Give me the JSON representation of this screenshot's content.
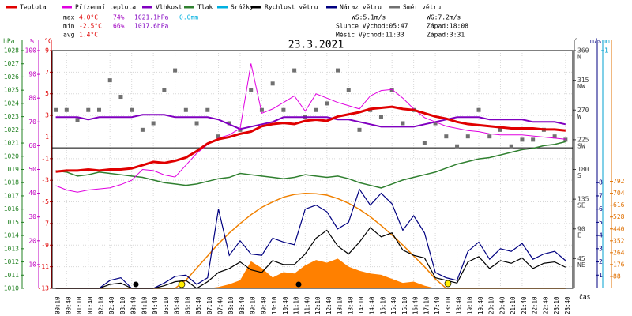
{
  "chart_data": {
    "type": "line",
    "title": "23.3.2021",
    "xlabel": "čas",
    "x": [
      "00:10",
      "00:40",
      "01:10",
      "01:40",
      "02:10",
      "02:40",
      "03:10",
      "03:40",
      "04:10",
      "04:40",
      "05:10",
      "05:40",
      "06:10",
      "06:40",
      "07:10",
      "07:40",
      "08:10",
      "08:40",
      "09:10",
      "09:40",
      "10:10",
      "10:40",
      "11:10",
      "11:40",
      "12:10",
      "12:40",
      "13:10",
      "13:40",
      "14:10",
      "14:40",
      "15:10",
      "15:40",
      "16:10",
      "16:40",
      "17:10",
      "17:40",
      "18:10",
      "18:40",
      "19:10",
      "19:40",
      "20:10",
      "20:40",
      "21:10",
      "21:40",
      "22:10",
      "22:40",
      "23:10",
      "23:40"
    ],
    "axes": {
      "hpa": {
        "label": "hPa",
        "color": "#208020",
        "ylim": [
          1010,
          1028
        ],
        "yticks": [
          1010,
          1011,
          1012,
          1013,
          1014,
          1015,
          1016,
          1017,
          1018,
          1019,
          1020,
          1021,
          1022,
          1023,
          1024,
          1025,
          1026,
          1027,
          1028
        ]
      },
      "pct": {
        "label": "%",
        "color": "#c000c0",
        "ylim": [
          0,
          100
        ],
        "yticks": [
          10,
          20,
          30,
          40,
          50,
          60,
          70,
          80,
          90,
          100
        ]
      },
      "temp": {
        "label": "°C",
        "color": "#e00000",
        "ylim": [
          -13,
          9
        ],
        "yticks": [
          -13,
          -11,
          -9,
          -7,
          -5,
          -3,
          -1,
          1,
          3,
          5,
          7,
          9
        ]
      },
      "dir": {
        "label": "°",
        "color": "#404040",
        "ylim": [
          0,
          360
        ],
        "yticks": [
          45,
          90,
          135,
          180,
          225,
          270,
          315,
          360
        ],
        "compass": [
          "NE",
          "E",
          "SE",
          "S",
          "SW",
          "W",
          "NW",
          "N"
        ]
      },
      "wind": {
        "label": "m/s",
        "color": "#000080",
        "ylim": [
          0,
          18
        ],
        "yticks": [
          1,
          2,
          3,
          4,
          5,
          6,
          7,
          8
        ]
      },
      "rain": {
        "label": "mm",
        "color": "#00a0d0",
        "ylim": [
          0,
          1
        ],
        "yticks": [
          1
        ]
      },
      "rad": {
        "color": "#e07000",
        "ylim": [
          0,
          1760
        ],
        "yticks": [
          88,
          176,
          264,
          352,
          440,
          528,
          616,
          704,
          792
        ]
      }
    },
    "series": [
      {
        "name": "Teplota",
        "color": "#e00000",
        "axis": "temp",
        "width": 3,
        "values": [
          -2.2,
          -2.1,
          -2.1,
          -2.0,
          -2.1,
          -2.0,
          -2.0,
          -1.9,
          -1.6,
          -1.3,
          -1.4,
          -1.2,
          -0.9,
          -0.3,
          0.4,
          0.8,
          1.0,
          1.3,
          1.5,
          2.0,
          2.2,
          2.3,
          2.2,
          2.5,
          2.6,
          2.5,
          2.9,
          3.1,
          3.3,
          3.6,
          3.7,
          3.8,
          3.6,
          3.5,
          3.2,
          2.9,
          2.7,
          2.4,
          2.2,
          2.1,
          2.0,
          1.9,
          1.8,
          1.8,
          1.8,
          1.7,
          1.7,
          1.6
        ]
      },
      {
        "name": "Přízemní teplota",
        "color": "#e000e0",
        "axis": "temp",
        "width": 1,
        "values": [
          -3.5,
          -3.9,
          -4.1,
          -3.9,
          -3.8,
          -3.7,
          -3.4,
          -3.0,
          -2.0,
          -2.1,
          -2.5,
          -2.7,
          -1.6,
          -0.5,
          0.3,
          0.9,
          1.2,
          1.8,
          7.8,
          3.2,
          3.6,
          4.2,
          4.8,
          3.4,
          5.0,
          4.6,
          4.2,
          3.9,
          3.6,
          4.8,
          5.3,
          5.4,
          4.6,
          3.6,
          2.8,
          2.4,
          2.0,
          1.8,
          1.6,
          1.5,
          1.3,
          1.2,
          1.2,
          1.2,
          1.1,
          1.0,
          0.9,
          0.8
        ]
      },
      {
        "name": "Vlhkost",
        "color": "#8000c0",
        "axis": "pct",
        "width": 2,
        "values": [
          72,
          72,
          72,
          71,
          72,
          72,
          72,
          72,
          73,
          73,
          73,
          72,
          72,
          72,
          72,
          71,
          69,
          67,
          68,
          69,
          70,
          72,
          72,
          72,
          72,
          72,
          71,
          71,
          70,
          69,
          68,
          68,
          68,
          68,
          69,
          70,
          71,
          72,
          72,
          72,
          71,
          71,
          71,
          71,
          70,
          70,
          70,
          69
        ]
      },
      {
        "name": "Tlak",
        "color": "#308030",
        "axis": "hpa",
        "width": 1.5,
        "values": [
          1018.9,
          1018.8,
          1018.5,
          1018.6,
          1018.8,
          1018.7,
          1018.6,
          1018.5,
          1018.4,
          1018.2,
          1018.0,
          1017.9,
          1017.8,
          1017.9,
          1018.1,
          1018.3,
          1018.4,
          1018.7,
          1018.6,
          1018.5,
          1018.4,
          1018.3,
          1018.4,
          1018.6,
          1018.5,
          1018.4,
          1018.5,
          1018.3,
          1018.0,
          1017.8,
          1017.6,
          1017.9,
          1018.2,
          1018.4,
          1018.6,
          1018.8,
          1019.1,
          1019.4,
          1019.6,
          1019.8,
          1019.9,
          1020.1,
          1020.3,
          1020.5,
          1020.6,
          1020.8,
          1020.9,
          1021.1
        ]
      },
      {
        "name": "Srážky",
        "color": "#00b0e0",
        "axis": "rain",
        "width": 1,
        "values": [
          0,
          0,
          0,
          0,
          0,
          0,
          0,
          0,
          0,
          0,
          0,
          0,
          0,
          0,
          0,
          0,
          0,
          0,
          0,
          0,
          0,
          0,
          0,
          0,
          0,
          0,
          0,
          0,
          0,
          0,
          0,
          0,
          0,
          0,
          0,
          0,
          0,
          0,
          0,
          0,
          0,
          0,
          0,
          0,
          0,
          0,
          0,
          0
        ]
      },
      {
        "name": "Rychlost větru",
        "color": "#000000",
        "axis": "wind",
        "width": 1.2,
        "values": [
          0,
          0,
          0,
          0,
          0,
          0.3,
          0.4,
          0,
          0,
          0,
          0.2,
          0.5,
          0.6,
          0,
          0.5,
          1.2,
          1.5,
          2.0,
          1.4,
          1.2,
          2.1,
          1.8,
          1.8,
          2.6,
          3.8,
          4.4,
          3.2,
          2.6,
          3.5,
          4.6,
          3.9,
          4.2,
          2.9,
          2.5,
          2.3,
          0.8,
          0.6,
          0.4,
          2.0,
          2.4,
          1.5,
          2.1,
          1.9,
          2.3,
          1.5,
          1.9,
          2.0,
          1.6
        ]
      },
      {
        "name": "Náraz větru",
        "color": "#000080",
        "axis": "wind",
        "width": 1.2,
        "values": [
          0,
          0,
          0,
          0,
          0,
          0.6,
          0.8,
          0,
          0,
          0,
          0.4,
          0.9,
          1.0,
          0.3,
          0.8,
          6.0,
          2.5,
          3.6,
          2.6,
          2.5,
          3.8,
          3.5,
          3.3,
          6.0,
          6.3,
          5.8,
          4.5,
          5.0,
          7.5,
          6.3,
          7.2,
          6.4,
          4.4,
          5.5,
          4.2,
          1.2,
          0.8,
          0.6,
          2.8,
          3.5,
          2.2,
          3.0,
          2.8,
          3.4,
          2.2,
          2.6,
          2.8,
          2.1
        ]
      },
      {
        "name": "Směr větru",
        "color": "#707070",
        "axis": "dir",
        "style": "scatter",
        "values": [
          270,
          270,
          255,
          270,
          270,
          315,
          290,
          270,
          240,
          250,
          300,
          330,
          270,
          250,
          270,
          230,
          250,
          240,
          300,
          270,
          310,
          270,
          330,
          260,
          270,
          280,
          330,
          300,
          240,
          270,
          260,
          300,
          250,
          270,
          220,
          250,
          230,
          215,
          230,
          270,
          230,
          240,
          215,
          225,
          225,
          240,
          230,
          225
        ]
      }
    ],
    "radiation": {
      "color": "#ff8000",
      "axis": "rad",
      "theoretical": [
        0,
        0,
        0,
        0,
        0,
        0,
        0,
        0,
        0,
        0,
        0,
        0,
        60,
        150,
        240,
        330,
        410,
        480,
        545,
        600,
        640,
        675,
        695,
        703,
        700,
        690,
        665,
        630,
        585,
        530,
        465,
        395,
        320,
        240,
        160,
        70,
        0,
        0,
        0,
        0,
        0,
        0,
        0,
        0,
        0,
        0,
        0,
        0
      ],
      "measured": [
        0,
        0,
        0,
        0,
        0,
        0,
        0,
        0,
        0,
        0,
        0,
        0,
        0,
        0,
        0,
        10,
        30,
        60,
        200,
        150,
        80,
        120,
        110,
        170,
        210,
        190,
        220,
        160,
        130,
        110,
        100,
        70,
        40,
        50,
        20,
        0,
        0,
        0,
        0,
        0,
        0,
        0,
        0,
        0,
        0,
        0,
        0,
        0
      ]
    },
    "stats": [
      {
        "label": "max",
        "values": [
          "4.0°C",
          "74%",
          "1021.1hPa",
          "0.0mm"
        ]
      },
      {
        "label": "min",
        "values": [
          "-2.5°C",
          "66%",
          "1017.6hPa"
        ]
      },
      {
        "label": "avg",
        "values": [
          "1.4°C"
        ]
      }
    ],
    "info": [
      "WS:5.1m/s",
      "WG:7.2m/s",
      "Slunce Východ:05:47",
      "Západ:18:08",
      "Měsíc Východ:11:33",
      "Západ:3:31"
    ]
  }
}
